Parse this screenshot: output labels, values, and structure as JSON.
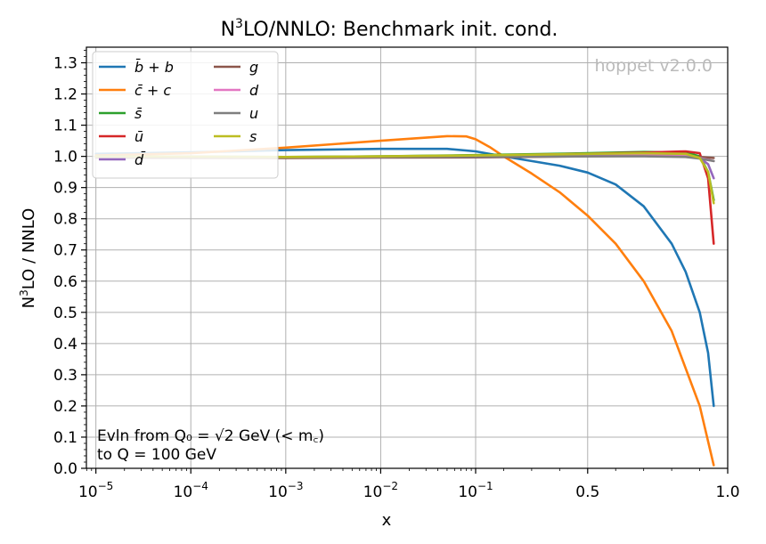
{
  "chart_data": {
    "type": "line",
    "title_main": "N",
    "title_sup": "3",
    "title_rest": "LO/NNLO: Benchmark init. cond.",
    "xlabel": "x",
    "ylabel_main": "N",
    "ylabel_sup": "3",
    "ylabel_rest": "LO / NNLO",
    "ylim": [
      0.0,
      1.35
    ],
    "y_ticks": [
      "0.0",
      "0.1",
      "0.2",
      "0.3",
      "0.4",
      "0.5",
      "0.6",
      "0.7",
      "0.8",
      "0.9",
      "1.0",
      "1.1",
      "1.2",
      "1.3"
    ],
    "x_ticks": [
      {
        "value": 1e-05,
        "base": "10",
        "exp": "−5"
      },
      {
        "value": 0.0001,
        "base": "10",
        "exp": "−4"
      },
      {
        "value": 0.001,
        "base": "10",
        "exp": "−3"
      },
      {
        "value": 0.01,
        "base": "10",
        "exp": "−2"
      },
      {
        "value": 0.1,
        "base": "10",
        "exp": "−1"
      },
      {
        "value": 0.5,
        "base": "0.5",
        "exp": ""
      },
      {
        "value": 1.0,
        "base": "1.0",
        "exp": ""
      }
    ],
    "x_scale": "log below 0.1, linear from 0.1 to 1.0",
    "grid": true,
    "watermark": "hoppet v2.0.0",
    "annotation_line1": "Evln from Q₀ = √2 GeV (< m꜀)",
    "annotation_line2": "to Q = 100 GeV",
    "legend_position": "top-left",
    "series": [
      {
        "name": "b̄ + b",
        "color": "#1f77b4",
        "x": [
          1e-05,
          0.0001,
          0.001,
          0.01,
          0.05,
          0.1,
          0.2,
          0.3,
          0.4,
          0.5,
          0.6,
          0.7,
          0.8,
          0.85,
          0.9,
          0.93,
          0.95
        ],
        "y": [
          1.008,
          1.013,
          1.02,
          1.024,
          1.024,
          1.016,
          1.0,
          0.985,
          0.97,
          0.948,
          0.91,
          0.84,
          0.72,
          0.63,
          0.5,
          0.37,
          0.2
        ]
      },
      {
        "name": "c̄ + c",
        "color": "#ff7f0e",
        "x": [
          1e-05,
          0.0001,
          0.001,
          0.01,
          0.03,
          0.05,
          0.08,
          0.1,
          0.15,
          0.2,
          0.3,
          0.4,
          0.5,
          0.6,
          0.7,
          0.8,
          0.9,
          0.95
        ],
        "y": [
          1.003,
          1.01,
          1.028,
          1.05,
          1.06,
          1.065,
          1.064,
          1.055,
          1.03,
          1.0,
          0.945,
          0.885,
          0.81,
          0.72,
          0.6,
          0.44,
          0.2,
          0.01
        ]
      },
      {
        "name": "s̄",
        "color": "#2ca02c",
        "x": [
          1e-05,
          0.001,
          0.01,
          0.1,
          0.5,
          0.7,
          0.85,
          0.9,
          0.93,
          0.95
        ],
        "y": [
          1.0,
          0.998,
          1.0,
          1.004,
          1.01,
          1.014,
          1.013,
          1.0,
          0.95,
          0.86
        ]
      },
      {
        "name": "ū",
        "color": "#d62728",
        "x": [
          1e-05,
          0.001,
          0.01,
          0.1,
          0.5,
          0.7,
          0.85,
          0.9,
          0.93,
          0.95
        ],
        "y": [
          1.0,
          0.997,
          0.998,
          1.002,
          1.008,
          1.012,
          1.016,
          1.01,
          0.93,
          0.72
        ]
      },
      {
        "name": "d̄",
        "color": "#9467bd",
        "x": [
          1e-05,
          0.001,
          0.01,
          0.1,
          0.5,
          0.7,
          0.85,
          0.9,
          0.93,
          0.95
        ],
        "y": [
          0.999,
          0.996,
          0.997,
          1.0,
          1.004,
          1.007,
          1.005,
          0.995,
          0.975,
          0.93
        ]
      },
      {
        "name": "g",
        "color": "#8c564b",
        "x": [
          1e-05,
          0.001,
          0.01,
          0.1,
          0.5,
          0.7,
          0.85,
          0.9,
          0.95
        ],
        "y": [
          0.996,
          0.995,
          0.996,
          0.997,
          1.0,
          1.002,
          1.0,
          0.998,
          0.995
        ]
      },
      {
        "name": "d",
        "color": "#e377c2",
        "x": [
          1e-05,
          0.001,
          0.01,
          0.1,
          0.5,
          0.7,
          0.85,
          0.9,
          0.95
        ],
        "y": [
          0.999,
          0.997,
          0.998,
          1.0,
          1.002,
          1.003,
          1.001,
          0.995,
          0.985
        ]
      },
      {
        "name": "u",
        "color": "#7f7f7f",
        "x": [
          1e-05,
          0.001,
          0.01,
          0.1,
          0.5,
          0.7,
          0.85,
          0.9,
          0.95
        ],
        "y": [
          0.999,
          0.997,
          0.998,
          0.999,
          1.0,
          1.0,
          0.998,
          0.993,
          0.985
        ]
      },
      {
        "name": "s",
        "color": "#bcbd22",
        "x": [
          1e-05,
          0.001,
          0.01,
          0.1,
          0.5,
          0.7,
          0.85,
          0.9,
          0.93,
          0.95
        ],
        "y": [
          1.0,
          0.998,
          1.0,
          1.003,
          1.008,
          1.01,
          1.008,
          0.995,
          0.95,
          0.85
        ]
      }
    ]
  }
}
